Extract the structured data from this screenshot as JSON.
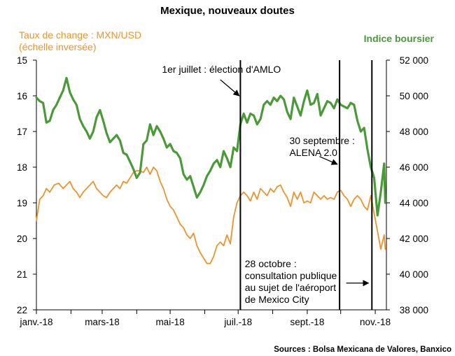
{
  "chart_data": {
    "type": "line",
    "title": "Mexique, nouveaux doutes",
    "left_axis": {
      "label_line1": "Taux de change : MXN/USD",
      "label_line2": "(échelle inversée)",
      "range": [
        15,
        22
      ],
      "inverted": true,
      "ticks": [
        "15",
        "16",
        "17",
        "18",
        "19",
        "20",
        "21",
        "22"
      ],
      "color": "#F0922C"
    },
    "right_axis": {
      "label": "Indice boursier",
      "range": [
        38000,
        52000
      ],
      "ticks": [
        "38 000",
        "40 000",
        "42 000",
        "44 000",
        "46 000",
        "48 000",
        "50 000",
        "52 000"
      ],
      "color": "#4B9A3A"
    },
    "x_axis": {
      "range": [
        0,
        314
      ],
      "month_starts": [
        0,
        31,
        59,
        90,
        120,
        151,
        181,
        212,
        243,
        273,
        304
      ],
      "tick_labels": [
        {
          "day": 0,
          "label": "janv.-18"
        },
        {
          "day": 59,
          "label": "mars-18"
        },
        {
          "day": 120,
          "label": "mai-18"
        },
        {
          "day": 181,
          "label": "juil.-18"
        },
        {
          "day": 243,
          "label": "sept.-18"
        },
        {
          "day": 304,
          "label": "nov.-18"
        }
      ]
    },
    "series": [
      {
        "name": "Taux de change : MXN/USD",
        "axis": "left",
        "color": "#F0922C",
        "x": [
          0,
          3,
          6,
          9,
          12,
          16,
          20,
          24,
          27,
          30,
          33,
          36,
          39,
          42,
          45,
          48,
          51,
          54,
          57,
          60,
          63,
          66,
          69,
          72,
          75,
          78,
          81,
          84,
          87,
          90,
          93,
          96,
          99,
          102,
          105,
          108,
          111,
          114,
          117,
          120,
          123,
          126,
          129,
          132,
          135,
          138,
          141,
          144,
          147,
          150,
          153,
          156,
          159,
          162,
          165,
          168,
          171,
          174,
          177,
          180,
          183,
          186,
          189,
          192,
          195,
          198,
          201,
          204,
          207,
          210,
          213,
          216,
          219,
          222,
          225,
          228,
          231,
          234,
          237,
          240,
          243,
          246,
          249,
          252,
          255,
          258,
          261,
          264,
          267,
          270,
          273,
          276,
          279,
          282,
          285,
          288,
          291,
          294,
          297,
          300,
          303,
          306,
          309,
          312,
          313
        ],
        "y": [
          19.5,
          18.9,
          18.8,
          18.6,
          18.7,
          18.5,
          18.45,
          18.6,
          18.5,
          18.4,
          18.6,
          18.7,
          18.85,
          18.7,
          18.6,
          18.5,
          18.4,
          18.6,
          18.7,
          18.8,
          18.85,
          18.7,
          18.6,
          18.5,
          18.6,
          18.4,
          18.45,
          18.3,
          18.15,
          18.1,
          18.1,
          18.15,
          18.0,
          18.2,
          18.0,
          18.1,
          18.4,
          18.6,
          18.9,
          19.1,
          19.2,
          19.4,
          19.6,
          19.7,
          19.9,
          20.0,
          19.85,
          20.2,
          20.4,
          20.55,
          20.7,
          20.7,
          20.5,
          20.2,
          20.1,
          20.2,
          19.9,
          20.15,
          19.4,
          19.0,
          18.8,
          18.7,
          18.8,
          18.95,
          18.7,
          18.9,
          18.6,
          18.7,
          18.8,
          18.6,
          18.7,
          18.55,
          18.5,
          18.7,
          18.85,
          19.1,
          18.7,
          18.9,
          18.7,
          19.0,
          18.95,
          19.0,
          18.7,
          18.8,
          18.9,
          18.8,
          18.9,
          18.85,
          18.9,
          18.7,
          18.65,
          18.8,
          18.9,
          19.1,
          18.9,
          18.8,
          18.9,
          19.1,
          19.2,
          18.8,
          19.3,
          19.8,
          20.3,
          19.9,
          20.3
        ],
        "width": 1.8
      },
      {
        "name": "Indice boursier",
        "axis": "right",
        "color": "#4B9A3A",
        "x": [
          0,
          3,
          6,
          9,
          12,
          15,
          18,
          21,
          24,
          27,
          30,
          33,
          36,
          39,
          42,
          45,
          48,
          51,
          54,
          57,
          60,
          63,
          66,
          69,
          72,
          75,
          78,
          81,
          84,
          87,
          90,
          93,
          96,
          99,
          102,
          105,
          108,
          111,
          114,
          117,
          120,
          123,
          126,
          129,
          132,
          135,
          138,
          141,
          144,
          147,
          150,
          153,
          156,
          159,
          162,
          165,
          168,
          171,
          174,
          177,
          180,
          183,
          186,
          189,
          192,
          195,
          198,
          201,
          204,
          207,
          210,
          213,
          216,
          219,
          222,
          225,
          228,
          231,
          234,
          237,
          240,
          243,
          246,
          249,
          252,
          255,
          258,
          261,
          264,
          267,
          270,
          273,
          276,
          279,
          282,
          285,
          288,
          291,
          294,
          297,
          300,
          303,
          306,
          309,
          312,
          313
        ],
        "y": [
          49900,
          49700,
          49600,
          48500,
          48600,
          49200,
          49500,
          49900,
          50300,
          51000,
          50200,
          49800,
          49500,
          48700,
          48300,
          48000,
          47600,
          48000,
          48800,
          49200,
          48600,
          47900,
          47400,
          47600,
          47800,
          47500,
          46800,
          46700,
          46300,
          45900,
          45400,
          45700,
          47300,
          47500,
          48400,
          47800,
          48300,
          48000,
          47600,
          47100,
          47300,
          46900,
          46800,
          46500,
          45600,
          45300,
          45500,
          44900,
          44300,
          44600,
          45000,
          45500,
          45800,
          46200,
          46400,
          46000,
          46900,
          46500,
          46000,
          47100,
          46900,
          48400,
          49000,
          48500,
          49000,
          48900,
          48400,
          48700,
          49500,
          49700,
          49500,
          49900,
          49700,
          50000,
          49800,
          49100,
          48700,
          49900,
          49400,
          48900,
          49700,
          50300,
          49500,
          49600,
          50100,
          48900,
          49300,
          49700,
          49600,
          49300,
          49800,
          49500,
          49400,
          49300,
          49600,
          49500,
          48600,
          48000,
          48200,
          47000,
          46000,
          45400,
          43300,
          44600,
          46200,
          44000
        ]
      }
    ],
    "vertical_lines": [
      {
        "day": 183
      },
      {
        "day": 272
      },
      {
        "day": 301
      }
    ],
    "annotations": [
      {
        "lines": [
          "1er juillet  : élection d'AMLO"
        ],
        "day_anchor": 166,
        "value_left": 15.35,
        "align": "middle",
        "arrow_from": [
          165,
          15.55
        ],
        "arrow_to": [
          182,
          16.0
        ]
      },
      {
        "lines": [
          "30 septembre :",
          "ALENA 2.0"
        ],
        "day_anchor": 227,
        "value_left": 17.35,
        "align": "start",
        "arrow_from": [
          254,
          17.7
        ],
        "arrow_to": [
          270,
          17.92
        ]
      },
      {
        "lines": [
          "28 octobre :",
          "consultation publique",
          "au sujet de l'aéroport",
          "de Mexico  City"
        ],
        "day_anchor": 187,
        "value_left": 20.8,
        "align": "start",
        "arrow_from": [
          278,
          21.25
        ],
        "arrow_to": [
          298,
          21.25
        ]
      }
    ],
    "source": "Sources : Bolsa Mexicana de Valores, Banxico"
  }
}
